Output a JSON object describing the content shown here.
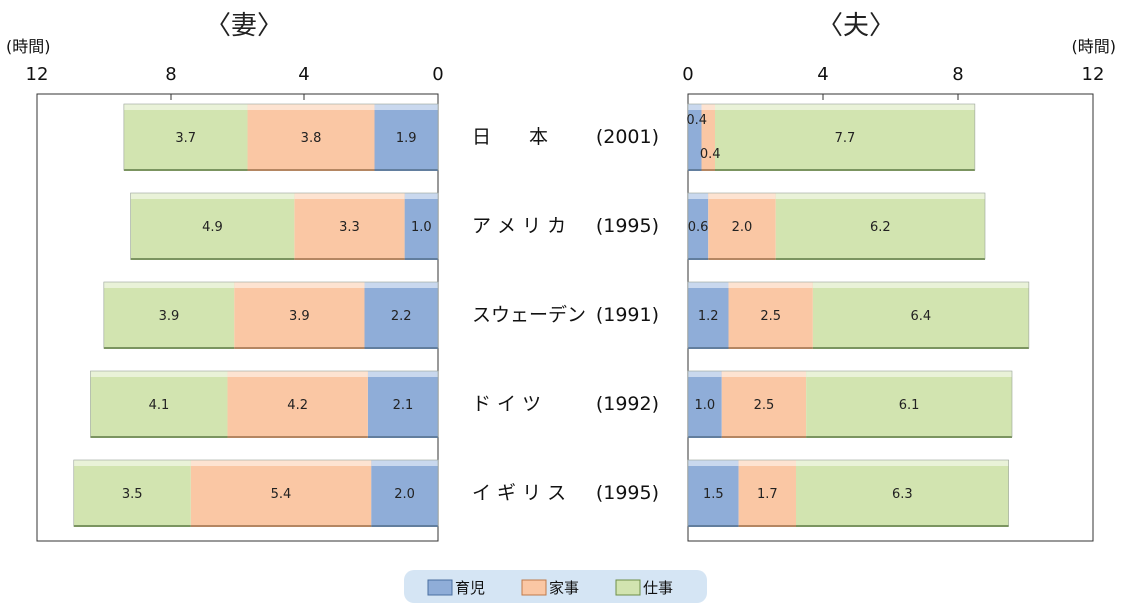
{
  "colors": {
    "childcare": "#8fadd8",
    "housework": "#fac7a4",
    "work": "#d2e4b0"
  },
  "legend": [
    {
      "key": "childcare",
      "label": "育児"
    },
    {
      "key": "housework",
      "label": "家事"
    },
    {
      "key": "work",
      "label": "仕事"
    }
  ],
  "chart_data": [
    {
      "type": "bar",
      "orientation": "horizontal",
      "stacked": true,
      "direction": "right-to-left",
      "title": "〈妻〉",
      "unit_label": "(時間)",
      "xlim": [
        0,
        12
      ],
      "ticks": [
        "0",
        "4",
        "8",
        "12"
      ],
      "categories": [
        "日　本 (2001)",
        "アメリカ (1995)",
        "スウェーデン (1991)",
        "ド イ ツ (1992)",
        "イギリス (1995)"
      ],
      "series": [
        {
          "name": "育児",
          "key": "childcare",
          "values": [
            1.9,
            1.0,
            2.2,
            2.1,
            2.0
          ]
        },
        {
          "name": "家事",
          "key": "housework",
          "values": [
            3.8,
            3.3,
            3.9,
            4.2,
            5.4
          ]
        },
        {
          "name": "仕事",
          "key": "work",
          "values": [
            3.7,
            4.9,
            3.9,
            4.1,
            3.5
          ]
        }
      ]
    },
    {
      "type": "bar",
      "orientation": "horizontal",
      "stacked": true,
      "direction": "left-to-right",
      "title": "〈夫〉",
      "unit_label": "(時間)",
      "xlim": [
        0,
        12
      ],
      "ticks": [
        "0",
        "4",
        "8",
        "12"
      ],
      "categories": [
        "日　本 (2001)",
        "アメリカ (1995)",
        "スウェーデン (1991)",
        "ド イ ツ (1992)",
        "イギリス (1995)"
      ],
      "series": [
        {
          "name": "育児",
          "key": "childcare",
          "values": [
            0.4,
            0.6,
            1.2,
            1.0,
            1.5
          ]
        },
        {
          "name": "家事",
          "key": "housework",
          "values": [
            0.4,
            2.0,
            2.5,
            2.5,
            1.7
          ]
        },
        {
          "name": "仕事",
          "key": "work",
          "values": [
            7.7,
            6.2,
            6.4,
            6.1,
            6.3
          ]
        }
      ]
    }
  ],
  "category_labels": [
    {
      "name": "日　　本",
      "year": "(2001)"
    },
    {
      "name": "ア メ リ カ",
      "year": "(1995)"
    },
    {
      "name": "スウェーデン",
      "year": "(1991)"
    },
    {
      "name": "ド イ ツ",
      "year": "(1992)"
    },
    {
      "name": "イ ギ リ ス",
      "year": "(1995)"
    }
  ]
}
